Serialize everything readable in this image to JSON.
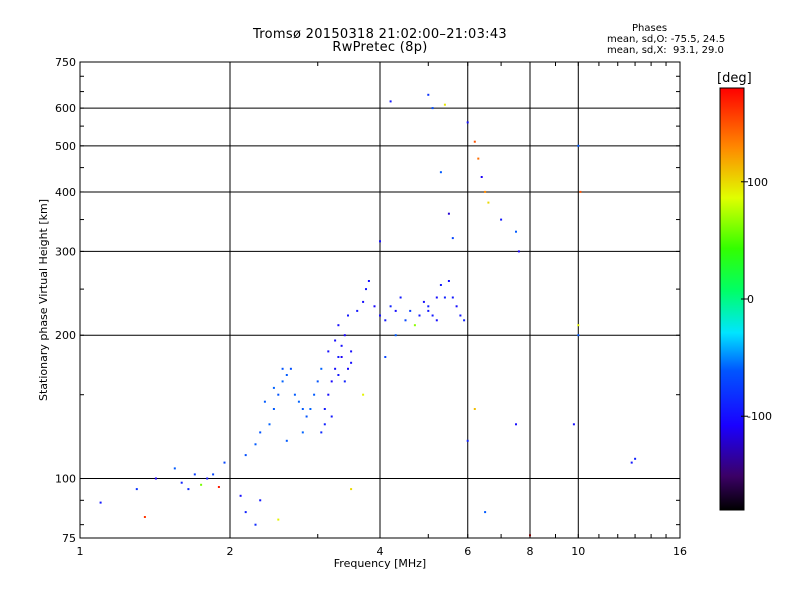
{
  "title": "Tromsø 20150318 21:02:00–21:03:43",
  "subtitle": "RwPretec (8p)",
  "phases": {
    "heading": "Phases",
    "o_line": "mean, sd,O: -75.5, 24.5",
    "x_line": "mean, sd,X:  93.1, 29.0"
  },
  "colorbar": {
    "unit": "[deg]",
    "range": [
      -180,
      180
    ],
    "ticks": [
      {
        "value": 100,
        "label": "100"
      },
      {
        "value": 0,
        "label": "0"
      },
      {
        "value": -100,
        "label": "-100"
      }
    ]
  },
  "chart_data": {
    "type": "scatter",
    "title": "Tromsø 20150318 21:02:00–21:03:43",
    "subtitle": "RwPretec (8p)",
    "xlabel": "Frequency [MHz]",
    "ylabel": "Stationary phase Virtual Height [km]",
    "x_scale": "log",
    "y_scale": "log",
    "xlim": [
      1,
      16
    ],
    "ylim": [
      75,
      750
    ],
    "x_ticks": [
      {
        "value": 1,
        "label": "1"
      },
      {
        "value": 2,
        "label": "2"
      },
      {
        "value": 4,
        "label": "4"
      },
      {
        "value": 6,
        "label": "6"
      },
      {
        "value": 8,
        "label": "8"
      },
      {
        "value": 10,
        "label": "10"
      },
      {
        "value": 16,
        "label": "16"
      }
    ],
    "y_ticks": [
      {
        "value": 75,
        "label": "75"
      },
      {
        "value": 100,
        "label": "100"
      },
      {
        "value": 200,
        "label": "200"
      },
      {
        "value": 300,
        "label": "300"
      },
      {
        "value": 400,
        "label": "400"
      },
      {
        "value": 500,
        "label": "500"
      },
      {
        "value": 600,
        "label": "600"
      },
      {
        "value": 750,
        "label": "750"
      }
    ],
    "grid": true,
    "colorbar_label": "[deg]",
    "points": [
      [
        1.1,
        89,
        -95
      ],
      [
        1.3,
        95,
        -80
      ],
      [
        1.35,
        83,
        160
      ],
      [
        1.42,
        100,
        -110
      ],
      [
        1.55,
        105,
        -60
      ],
      [
        1.6,
        98,
        -90
      ],
      [
        1.65,
        95,
        -85
      ],
      [
        1.7,
        102,
        -75
      ],
      [
        1.75,
        97,
        60
      ],
      [
        1.8,
        100,
        -95
      ],
      [
        1.85,
        102,
        -70
      ],
      [
        1.9,
        96,
        170
      ],
      [
        1.95,
        108,
        -70
      ],
      [
        2.1,
        92,
        -100
      ],
      [
        2.15,
        85,
        -90
      ],
      [
        2.25,
        80,
        -85
      ],
      [
        2.3,
        90,
        -95
      ],
      [
        2.5,
        82,
        90
      ],
      [
        2.15,
        112,
        -65
      ],
      [
        2.25,
        118,
        -60
      ],
      [
        2.3,
        125,
        -62
      ],
      [
        2.4,
        130,
        -58
      ],
      [
        2.45,
        140,
        -60
      ],
      [
        2.5,
        150,
        -62
      ],
      [
        2.55,
        160,
        -58
      ],
      [
        2.6,
        165,
        -60
      ],
      [
        2.65,
        170,
        -65
      ],
      [
        2.35,
        145,
        -60
      ],
      [
        2.45,
        155,
        -58
      ],
      [
        2.55,
        170,
        -62
      ],
      [
        2.7,
        150,
        -60
      ],
      [
        2.75,
        145,
        -58
      ],
      [
        2.8,
        140,
        -60
      ],
      [
        2.85,
        135,
        -62
      ],
      [
        2.9,
        140,
        -58
      ],
      [
        2.95,
        150,
        -60
      ],
      [
        3.0,
        160,
        -62
      ],
      [
        3.05,
        170,
        -58
      ],
      [
        2.6,
        120,
        -60
      ],
      [
        2.8,
        125,
        -58
      ],
      [
        3.1,
        140,
        -95
      ],
      [
        3.15,
        150,
        -100
      ],
      [
        3.2,
        160,
        -105
      ],
      [
        3.25,
        170,
        -100
      ],
      [
        3.3,
        180,
        -95
      ],
      [
        3.35,
        190,
        -100
      ],
      [
        3.4,
        200,
        -105
      ],
      [
        3.3,
        210,
        -100
      ],
      [
        3.45,
        220,
        -95
      ],
      [
        3.5,
        175,
        -100
      ],
      [
        3.1,
        130,
        -90
      ],
      [
        3.05,
        125,
        -85
      ],
      [
        3.2,
        135,
        -95
      ],
      [
        3.35,
        180,
        -110
      ],
      [
        3.25,
        195,
        -100
      ],
      [
        3.4,
        160,
        -90
      ],
      [
        3.15,
        185,
        -100
      ],
      [
        3.3,
        165,
        -95
      ],
      [
        3.45,
        170,
        -105
      ],
      [
        3.5,
        185,
        -100
      ],
      [
        3.6,
        225,
        -95
      ],
      [
        3.7,
        235,
        -100
      ],
      [
        3.75,
        250,
        -95
      ],
      [
        3.8,
        260,
        -100
      ],
      [
        3.9,
        230,
        -105
      ],
      [
        4.0,
        220,
        -100
      ],
      [
        4.1,
        215,
        -95
      ],
      [
        4.2,
        230,
        -90
      ],
      [
        4.3,
        225,
        -100
      ],
      [
        4.4,
        240,
        -95
      ],
      [
        4.5,
        215,
        -70
      ],
      [
        4.6,
        225,
        -75
      ],
      [
        4.7,
        210,
        65
      ],
      [
        4.8,
        220,
        -95
      ],
      [
        4.9,
        235,
        -100
      ],
      [
        5.0,
        230,
        -90
      ],
      [
        5.1,
        220,
        -95
      ],
      [
        5.2,
        240,
        -100
      ],
      [
        5.3,
        255,
        -95
      ],
      [
        5.4,
        240,
        -90
      ],
      [
        5.5,
        260,
        -100
      ],
      [
        5.6,
        240,
        -95
      ],
      [
        5.7,
        230,
        -100
      ],
      [
        5.8,
        220,
        -95
      ],
      [
        5.9,
        215,
        -90
      ],
      [
        5.2,
        215,
        -100
      ],
      [
        5.0,
        225,
        -95
      ],
      [
        4.0,
        315,
        -100
      ],
      [
        4.2,
        620,
        -95
      ],
      [
        5.0,
        640,
        -80
      ],
      [
        5.1,
        600,
        -65
      ],
      [
        5.4,
        610,
        95
      ],
      [
        5.3,
        440,
        -60
      ],
      [
        5.5,
        360,
        -120
      ],
      [
        5.6,
        320,
        -70
      ],
      [
        6.0,
        560,
        -100
      ],
      [
        6.2,
        510,
        150
      ],
      [
        6.3,
        470,
        140
      ],
      [
        6.4,
        430,
        -110
      ],
      [
        6.5,
        400,
        130
      ],
      [
        6.6,
        380,
        100
      ],
      [
        7.0,
        350,
        -95
      ],
      [
        7.5,
        330,
        -60
      ],
      [
        7.6,
        300,
        -110
      ],
      [
        10.0,
        500,
        -60
      ],
      [
        10.1,
        400,
        150
      ],
      [
        10.0,
        210,
        90
      ],
      [
        10.0,
        200,
        -60
      ],
      [
        9.8,
        130,
        -100
      ],
      [
        7.5,
        130,
        -100
      ],
      [
        8.0,
        76,
        180
      ],
      [
        6.5,
        85,
        -60
      ],
      [
        6.0,
        120,
        -90
      ],
      [
        6.2,
        140,
        110
      ],
      [
        13.0,
        110,
        -90
      ],
      [
        12.8,
        108,
        -95
      ],
      [
        4.3,
        200,
        -60
      ],
      [
        4.1,
        180,
        -70
      ],
      [
        3.7,
        150,
        90
      ],
      [
        3.5,
        95,
        100
      ]
    ]
  }
}
